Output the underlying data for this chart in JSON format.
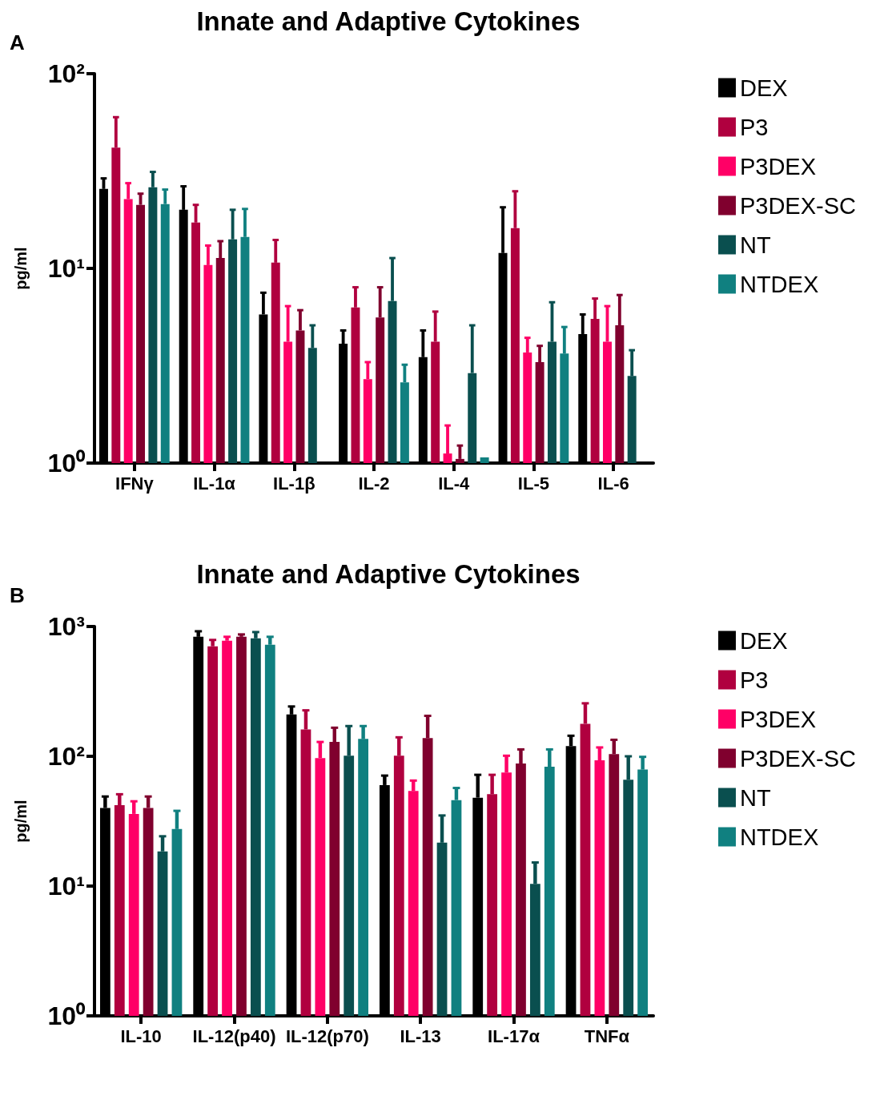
{
  "chart_data": [
    {
      "type": "bar",
      "title": "Innate and Adaptive Cytokines",
      "annotations": [
        "A"
      ],
      "ylabel": "pg/ml",
      "categories": [
        "IFNγ",
        "IL-1α",
        "IL-1β",
        "IL-2",
        "IL-4",
        "IL-5",
        "IL-6"
      ],
      "log": true,
      "ylim": [
        1,
        100
      ],
      "yticks": [
        {
          "value": 1,
          "label": "10⁰"
        },
        {
          "value": 10,
          "label": "10¹"
        },
        {
          "value": 100,
          "label": "10²"
        }
      ],
      "grid": false,
      "legend": "top right",
      "series": [
        {
          "name": "DEX",
          "color": "#000000",
          "values": [
            25.6,
            20.0,
            5.8,
            4.1,
            3.5,
            12.0,
            4.6
          ],
          "errors": [
            [
              25.6,
              29.0
            ],
            [
              20.0,
              26.4
            ],
            [
              5.8,
              7.5
            ],
            [
              4.1,
              4.8
            ],
            [
              3.5,
              4.8
            ],
            [
              12.0,
              20.6
            ],
            [
              4.6,
              5.8
            ]
          ]
        },
        {
          "name": "P3",
          "color": "#b0003f",
          "values": [
            41.7,
            17.2,
            10.7,
            6.3,
            4.2,
            16.1,
            5.5
          ],
          "errors": [
            [
              41.7,
              59.8
            ],
            [
              17.2,
              21.2
            ],
            [
              10.7,
              14.0
            ],
            [
              6.3,
              8.0
            ],
            [
              4.2,
              6.0
            ],
            [
              16.1,
              24.9
            ],
            [
              5.5,
              7.0
            ]
          ]
        },
        {
          "name": "P3DEX",
          "color": "#ff0066",
          "values": [
            22.7,
            10.4,
            4.2,
            2.7,
            1.12,
            3.7,
            4.2
          ],
          "errors": [
            [
              22.7,
              27.4
            ],
            [
              10.4,
              13.1
            ],
            [
              4.2,
              6.4
            ],
            [
              2.7,
              3.3
            ],
            [
              1.12,
              1.56
            ],
            [
              3.7,
              4.4
            ],
            [
              4.2,
              6.4
            ]
          ]
        },
        {
          "name": "P3DEX-SC",
          "color": "#80002e",
          "values": [
            21.2,
            11.3,
            4.8,
            5.6,
            1.05,
            3.3,
            5.1
          ],
          "errors": [
            [
              21.2,
              24.2
            ],
            [
              11.3,
              13.8
            ],
            [
              4.8,
              6.1
            ],
            [
              5.6,
              8.0
            ],
            [
              1.05,
              1.23
            ],
            [
              3.3,
              4.0
            ],
            [
              5.1,
              7.3
            ]
          ]
        },
        {
          "name": "NT",
          "color": "#0a4f4f",
          "values": [
            26.1,
            14.1,
            3.9,
            6.8,
            2.9,
            4.2,
            2.8
          ],
          "errors": [
            [
              26.1,
              31.3
            ],
            [
              14.1,
              20.0
            ],
            [
              3.9,
              5.1
            ],
            [
              6.8,
              11.3
            ],
            [
              2.9,
              5.1
            ],
            [
              4.2,
              6.7
            ],
            [
              2.8,
              3.8
            ]
          ]
        },
        {
          "name": "NTDEX",
          "color": "#108080",
          "values": [
            21.4,
            14.5,
            null,
            2.6,
            1.07,
            3.65,
            null
          ],
          "errors": [
            [
              21.4,
              25.4
            ],
            [
              14.5,
              20.2
            ],
            null,
            [
              2.6,
              3.2
            ],
            null,
            [
              3.65,
              5.0
            ],
            null
          ]
        }
      ]
    },
    {
      "type": "bar",
      "title": "Innate and Adaptive Cytokines",
      "annotations": [
        "B"
      ],
      "ylabel": "pg/ml",
      "categories": [
        "IL-10",
        "IL-12(p40)",
        "IL-12(p70)",
        "IL-13",
        "IL-17α",
        "TNFα"
      ],
      "log": true,
      "ylim": [
        1,
        1000
      ],
      "yticks": [
        {
          "value": 1,
          "label": "10⁰"
        },
        {
          "value": 10,
          "label": "10¹"
        },
        {
          "value": 100,
          "label": "10²"
        },
        {
          "value": 1000,
          "label": "10³"
        }
      ],
      "grid": false,
      "legend": "top right",
      "series": [
        {
          "name": "DEX",
          "color": "#000000",
          "values": [
            40,
            833,
            210,
            60,
            48,
            120
          ],
          "errors": [
            [
              40,
              49
            ],
            [
              833,
              919
            ],
            [
              210,
              242
            ],
            [
              60,
              71
            ],
            [
              48,
              72
            ],
            [
              120,
              144
            ]
          ]
        },
        {
          "name": "P3",
          "color": "#b0003f",
          "values": [
            42,
            704,
            161,
            101,
            51,
            178
          ],
          "errors": [
            [
              42,
              51
            ],
            [
              704,
              788
            ],
            [
              161,
              226
            ],
            [
              101,
              140
            ],
            [
              51,
              72
            ],
            [
              178,
              256
            ]
          ]
        },
        {
          "name": "P3DEX",
          "color": "#ff0066",
          "values": [
            36,
            777,
            97,
            54,
            75,
            93
          ],
          "errors": [
            [
              36,
              45
            ],
            [
              777,
              833
            ],
            [
              97,
              129
            ],
            [
              54,
              65
            ],
            [
              75,
              101
            ],
            [
              93,
              117
            ]
          ]
        },
        {
          "name": "P3DEX-SC",
          "color": "#80002e",
          "values": [
            40,
            833,
            129,
            138,
            88,
            104
          ],
          "errors": [
            [
              40,
              49
            ],
            [
              833,
              869
            ],
            [
              129,
              166
            ],
            [
              138,
              205
            ],
            [
              88,
              113
            ],
            [
              104,
              134
            ]
          ]
        },
        {
          "name": "NT",
          "color": "#0a4f4f",
          "values": [
            18.5,
            811,
            101,
            21.6,
            10.4,
            66
          ],
          "errors": [
            [
              18.5,
              24.2
            ],
            [
              811,
              906
            ],
            [
              101,
              171
            ],
            [
              21.6,
              35
            ],
            [
              10.4,
              15.2
            ],
            [
              66,
              100
            ]
          ]
        },
        {
          "name": "NTDEX",
          "color": "#108080",
          "values": [
            27.5,
            724,
            136,
            46,
            83,
            79
          ],
          "errors": [
            [
              27.5,
              38
            ],
            [
              724,
              833
            ],
            [
              136,
              171
            ],
            [
              46,
              57
            ],
            [
              83,
              113
            ],
            [
              79,
              99
            ]
          ]
        }
      ]
    }
  ]
}
